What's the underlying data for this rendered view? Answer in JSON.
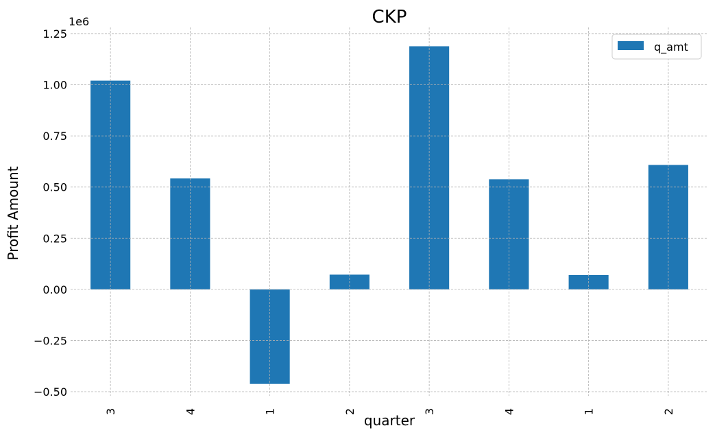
{
  "chart_data": {
    "type": "bar",
    "title": "CKP",
    "xlabel": "quarter",
    "ylabel": "Profit Amount",
    "offset_label": "1e6",
    "categories": [
      "3",
      "4",
      "1",
      "2",
      "3",
      "4",
      "1",
      "2"
    ],
    "series": [
      {
        "name": "q_amt",
        "color": "#1f77b4",
        "values": [
          1020000,
          542000,
          -462000,
          72000,
          1188000,
          538000,
          70000,
          608000
        ]
      }
    ],
    "ylim": [
      -0.52,
      1.28
    ],
    "yticks": [
      -0.5,
      -0.25,
      0.0,
      0.25,
      0.5,
      0.75,
      1.0,
      1.25
    ],
    "ytick_labels": [
      "−0.50",
      "−0.25",
      "0.00",
      "0.25",
      "0.50",
      "0.75",
      "1.00",
      "1.25"
    ],
    "grid": true,
    "legend_position": "top-right"
  }
}
